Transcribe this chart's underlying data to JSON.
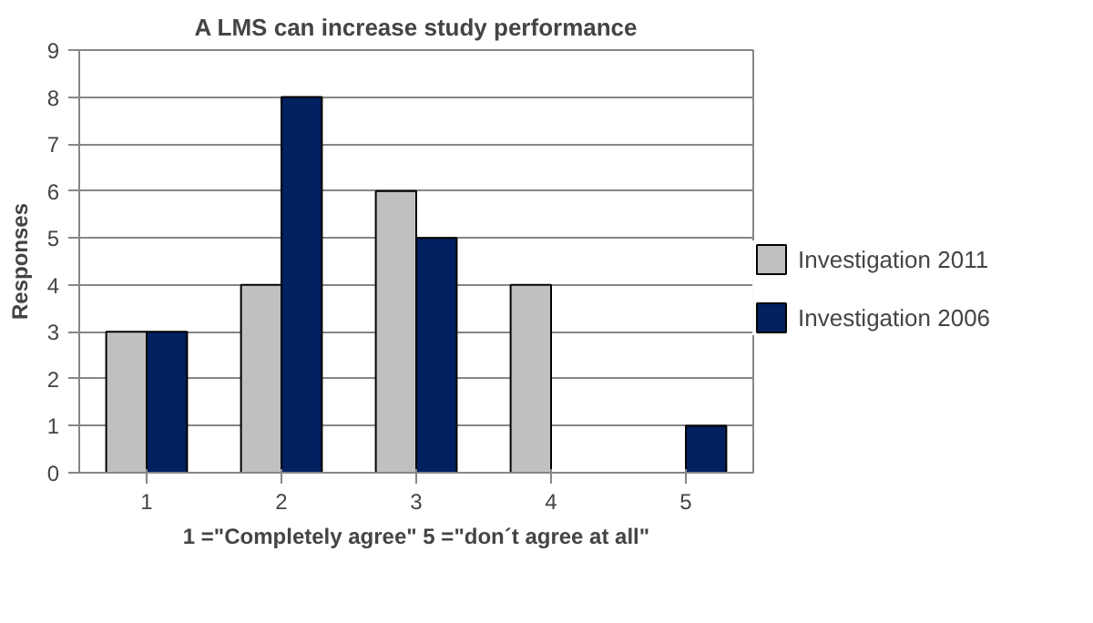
{
  "chart_data": {
    "type": "bar",
    "title": "A LMS can increase study performance",
    "xlabel": "1 =\"Completely agree\" 5 =\"don´t agree at all\"",
    "ylabel": "Responses",
    "categories": [
      "1",
      "2",
      "3",
      "4",
      "5"
    ],
    "series": [
      {
        "name": "Investigation 2011",
        "color": "#c0c0c0",
        "values": [
          3,
          4,
          6,
          4,
          0
        ]
      },
      {
        "name": "Investigation 2006",
        "color": "#002060",
        "values": [
          3,
          8,
          5,
          0,
          1
        ]
      }
    ],
    "ylim": [
      0,
      9
    ],
    "yticks": [
      0,
      1,
      2,
      3,
      4,
      5,
      6,
      7,
      8,
      9
    ],
    "grid": "y",
    "legend": "right"
  }
}
